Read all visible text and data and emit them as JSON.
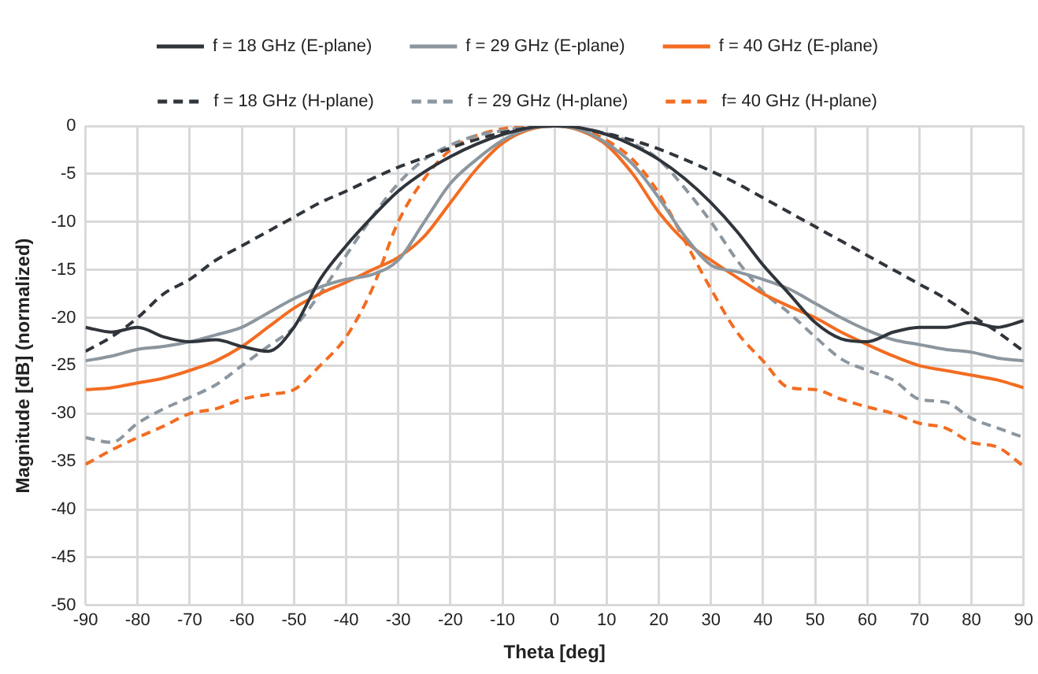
{
  "chart_data": {
    "type": "line",
    "xlabel": "Theta [deg]",
    "ylabel": "Magnitude [dB] (normalized)",
    "x": [
      -90,
      -85,
      -80,
      -75,
      -70,
      -65,
      -60,
      -55,
      -50,
      -45,
      -40,
      -35,
      -30,
      -25,
      -20,
      -15,
      -10,
      -5,
      0,
      5,
      10,
      15,
      20,
      25,
      30,
      35,
      40,
      45,
      50,
      55,
      60,
      65,
      70,
      75,
      80,
      85,
      90
    ],
    "series": [
      {
        "name": "f = 18 GHz (E-plane)",
        "color": "#2f353b",
        "line_style": "solid",
        "values": [
          -21,
          -21.5,
          -21,
          -22,
          -22.5,
          -22.3,
          -23,
          -23.5,
          -21,
          -16,
          -12.5,
          -9.5,
          -6.8,
          -4.8,
          -3.2,
          -1.9,
          -0.9,
          -0.2,
          0,
          -0.2,
          -0.9,
          -2,
          -3.5,
          -5.5,
          -8,
          -11,
          -14.5,
          -17.5,
          -20.5,
          -22.2,
          -22.5,
          -21.5,
          -21,
          -21,
          -20.5,
          -21,
          -20.3
        ]
      },
      {
        "name": "f = 29 GHz (E-plane)",
        "color": "#8c969e",
        "line_style": "solid",
        "values": [
          -24.5,
          -24,
          -23.3,
          -23,
          -22.5,
          -21.8,
          -21,
          -19.5,
          -18,
          -16.8,
          -16,
          -15.5,
          -14,
          -10,
          -6,
          -3.5,
          -1.5,
          -0.3,
          0,
          -0.4,
          -1.8,
          -4,
          -7.5,
          -11.5,
          -14.5,
          -15.2,
          -16,
          -17,
          -18.5,
          -20,
          -21.3,
          -22.3,
          -22.8,
          -23.3,
          -23.6,
          -24.2,
          -24.5
        ]
      },
      {
        "name": "f = 40 GHz (E-plane)",
        "color": "#f26d21",
        "line_style": "solid",
        "values": [
          -27.5,
          -27.3,
          -26.8,
          -26.3,
          -25.5,
          -24.5,
          -23,
          -21,
          -19,
          -17.5,
          -16.3,
          -15,
          -13.7,
          -11.5,
          -8,
          -4.5,
          -1.8,
          -0.4,
          0,
          -0.5,
          -2,
          -5,
          -9,
          -12,
          -14,
          -15.8,
          -17.5,
          -18.8,
          -20,
          -21.5,
          -22.8,
          -24,
          -25,
          -25.5,
          -26,
          -26.5,
          -27.3
        ]
      },
      {
        "name": "f = 18 GHz (H-plane)",
        "color": "#2f353b",
        "line_style": "dashed",
        "values": [
          -23.5,
          -22,
          -20,
          -17.5,
          -16,
          -14,
          -12.5,
          -11,
          -9.5,
          -8,
          -6.8,
          -5.5,
          -4.3,
          -3.3,
          -2.3,
          -1.4,
          -0.7,
          -0.2,
          0,
          -0.3,
          -0.8,
          -1.5,
          -2.4,
          -3.5,
          -4.7,
          -6,
          -7.5,
          -9,
          -10.5,
          -12,
          -13.5,
          -15,
          -16.5,
          -18,
          -19.8,
          -21.5,
          -23.5
        ]
      },
      {
        "name": "f = 29 GHz (H-plane)",
        "color": "#8c969e",
        "line_style": "dashed",
        "values": [
          -32.5,
          -33,
          -31,
          -29.5,
          -28.3,
          -27,
          -25,
          -23,
          -21,
          -17.5,
          -13.5,
          -9.5,
          -6,
          -3.5,
          -2,
          -1,
          -0.5,
          -0.1,
          0,
          -0.2,
          -0.8,
          -1.8,
          -3.5,
          -6.5,
          -10,
          -14,
          -17.3,
          -19.5,
          -22,
          -24.3,
          -25.5,
          -26.5,
          -28.5,
          -28.8,
          -30.5,
          -31.5,
          -32.5
        ]
      },
      {
        "name": "f= 40 GHz (H-plane)",
        "color": "#f26d21",
        "line_style": "dashed",
        "values": [
          -35.3,
          -33.8,
          -32.5,
          -31.3,
          -30,
          -29.5,
          -28.5,
          -28,
          -27.5,
          -25,
          -22,
          -17,
          -10,
          -5.5,
          -2.5,
          -1,
          -0.3,
          0,
          0,
          -0.3,
          -1.5,
          -3.5,
          -7,
          -12,
          -17,
          -21.5,
          -24.5,
          -27.3,
          -27.5,
          -28.5,
          -29.3,
          -30,
          -31,
          -31.5,
          -33,
          -33.5,
          -35.5
        ]
      }
    ],
    "xlim": [
      -90,
      90
    ],
    "xticks": [
      -90,
      -80,
      -70,
      -60,
      -50,
      -40,
      -30,
      -20,
      -10,
      0,
      10,
      20,
      30,
      40,
      50,
      60,
      70,
      80,
      90
    ],
    "ylim": [
      -50,
      0
    ],
    "yticks": [
      -50,
      -45,
      -40,
      -35,
      -30,
      -25,
      -20,
      -15,
      -10,
      -5,
      0
    ],
    "grid": true,
    "legend": "top",
    "marker": "none"
  }
}
